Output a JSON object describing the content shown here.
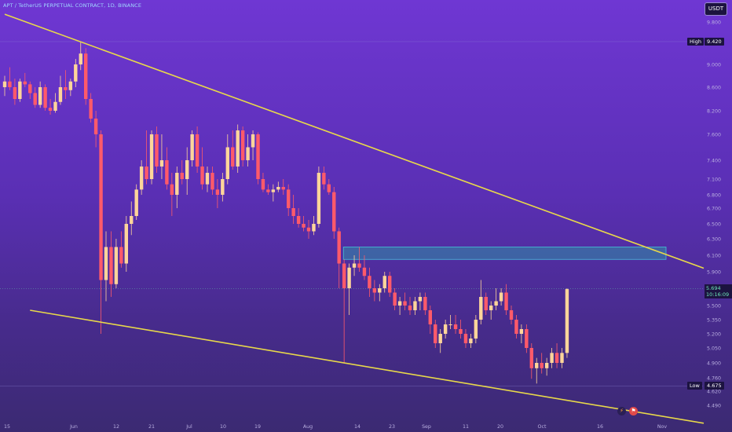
{
  "header": {
    "title": "APT / TetherUS PERPETUAL CONTRACT, 1D, BINANCE",
    "currency": "USDT"
  },
  "markers": {
    "high_label": "High",
    "high_value": "9.420",
    "low_label": "Low",
    "low_value": "4.675",
    "last_price": "5.694",
    "countdown": "10:16:09"
  },
  "colors": {
    "up": "#ffd59a",
    "down": "#ff5a6a",
    "trendline": "#e8d84a",
    "zone_fill": "#2f8fa8",
    "zone_border": "#46c2d8",
    "axis_text": "#b9aee0"
  },
  "icons": {
    "flash": "lightning-icon",
    "events": "flag-events-icon"
  },
  "chart_data": {
    "type": "candlestick",
    "yaxis": {
      "ticks": [
        "9.800",
        "9.420",
        "9.000",
        "8.600",
        "8.200",
        "7.600",
        "7.400",
        "7.100",
        "6.800",
        "6.700",
        "6.500",
        "6.300",
        "6.100",
        "5.900",
        "5.700",
        "5.500",
        "5.350",
        "5.200",
        "5.050",
        "4.900",
        "4.760",
        "4.620",
        "4.490"
      ]
    },
    "xaxis": {
      "ticks": [
        "15",
        "Jun",
        "12",
        "21",
        "Jul",
        "10",
        "19",
        "Aug",
        "14",
        "23",
        "Sep",
        "11",
        "20",
        "Oct",
        "16",
        "Nov"
      ]
    },
    "ohlc": [
      [
        8.6,
        8.8,
        8.45,
        8.7
      ],
      [
        8.7,
        8.95,
        8.55,
        8.6
      ],
      [
        8.6,
        8.75,
        8.3,
        8.4
      ],
      [
        8.4,
        8.75,
        8.35,
        8.7
      ],
      [
        8.7,
        8.85,
        8.6,
        8.65
      ],
      [
        8.65,
        8.7,
        8.4,
        8.5
      ],
      [
        8.5,
        8.6,
        8.25,
        8.3
      ],
      [
        8.3,
        8.7,
        8.25,
        8.6
      ],
      [
        8.6,
        8.65,
        8.2,
        8.25
      ],
      [
        8.25,
        8.4,
        8.1,
        8.2
      ],
      [
        8.2,
        8.5,
        8.15,
        8.35
      ],
      [
        8.35,
        8.8,
        8.3,
        8.6
      ],
      [
        8.6,
        8.9,
        8.4,
        8.55
      ],
      [
        8.55,
        8.75,
        8.45,
        8.7
      ],
      [
        8.7,
        9.1,
        8.6,
        9.0
      ],
      [
        9.0,
        9.42,
        8.9,
        9.2
      ],
      [
        9.2,
        9.3,
        8.3,
        8.4
      ],
      [
        8.4,
        8.5,
        7.9,
        8.0
      ],
      [
        8.0,
        8.2,
        7.5,
        7.6
      ],
      [
        7.6,
        7.7,
        5.2,
        5.8
      ],
      [
        5.8,
        6.4,
        5.55,
        6.2
      ],
      [
        6.2,
        6.4,
        5.6,
        5.75
      ],
      [
        5.75,
        6.3,
        5.7,
        6.2
      ],
      [
        6.2,
        6.4,
        5.95,
        6.0
      ],
      [
        6.0,
        6.6,
        5.9,
        6.5
      ],
      [
        6.5,
        6.75,
        6.35,
        6.6
      ],
      [
        6.6,
        7.0,
        6.55,
        6.9
      ],
      [
        6.9,
        7.4,
        6.8,
        7.3
      ],
      [
        7.3,
        7.7,
        7.0,
        7.1
      ],
      [
        7.1,
        7.7,
        7.0,
        7.6
      ],
      [
        7.6,
        7.8,
        7.2,
        7.3
      ],
      [
        7.3,
        7.6,
        7.1,
        7.4
      ],
      [
        7.4,
        7.5,
        6.9,
        7.0
      ],
      [
        7.0,
        7.2,
        6.6,
        6.8
      ],
      [
        6.8,
        7.3,
        6.7,
        7.2
      ],
      [
        7.2,
        7.4,
        7.0,
        7.1
      ],
      [
        7.1,
        7.5,
        6.8,
        7.4
      ],
      [
        7.4,
        7.7,
        7.3,
        7.6
      ],
      [
        7.6,
        7.8,
        7.2,
        7.3
      ],
      [
        7.3,
        7.5,
        6.9,
        7.0
      ],
      [
        7.0,
        7.3,
        6.85,
        7.2
      ],
      [
        7.2,
        7.3,
        6.8,
        6.9
      ],
      [
        6.9,
        7.1,
        6.7,
        6.8
      ],
      [
        6.8,
        7.2,
        6.75,
        7.1
      ],
      [
        7.1,
        7.6,
        7.0,
        7.5
      ],
      [
        7.5,
        7.7,
        7.25,
        7.3
      ],
      [
        7.3,
        7.85,
        7.2,
        7.7
      ],
      [
        7.7,
        7.8,
        7.3,
        7.4
      ],
      [
        7.4,
        7.6,
        7.3,
        7.5
      ],
      [
        7.5,
        7.7,
        7.4,
        7.6
      ],
      [
        7.6,
        7.65,
        7.0,
        7.1
      ],
      [
        7.1,
        7.2,
        6.85,
        6.9
      ],
      [
        6.9,
        7.0,
        6.8,
        6.85
      ],
      [
        6.85,
        7.0,
        6.75,
        6.9
      ],
      [
        6.9,
        7.05,
        6.85,
        6.95
      ],
      [
        6.95,
        7.1,
        6.8,
        6.9
      ],
      [
        6.9,
        7.0,
        6.6,
        6.7
      ],
      [
        6.7,
        6.8,
        6.5,
        6.6
      ],
      [
        6.6,
        6.7,
        6.45,
        6.5
      ],
      [
        6.5,
        6.6,
        6.4,
        6.45
      ],
      [
        6.45,
        6.55,
        6.3,
        6.4
      ],
      [
        6.4,
        6.6,
        6.35,
        6.5
      ],
      [
        6.5,
        7.3,
        6.45,
        7.2
      ],
      [
        7.2,
        7.3,
        6.9,
        7.0
      ],
      [
        7.0,
        7.1,
        6.8,
        6.85
      ],
      [
        6.85,
        6.95,
        6.3,
        6.4
      ],
      [
        6.4,
        6.45,
        5.7,
        6.0
      ],
      [
        6.0,
        6.05,
        4.9,
        5.7
      ],
      [
        5.7,
        6.0,
        5.4,
        5.95
      ],
      [
        5.95,
        6.1,
        5.85,
        6.0
      ],
      [
        6.0,
        6.2,
        5.9,
        5.95
      ],
      [
        5.95,
        6.1,
        5.8,
        5.85
      ],
      [
        5.85,
        5.95,
        5.6,
        5.7
      ],
      [
        5.7,
        5.8,
        5.55,
        5.65
      ],
      [
        5.65,
        5.75,
        5.55,
        5.7
      ],
      [
        5.7,
        5.9,
        5.65,
        5.85
      ],
      [
        5.85,
        5.9,
        5.6,
        5.65
      ],
      [
        5.65,
        5.7,
        5.45,
        5.5
      ],
      [
        5.5,
        5.6,
        5.4,
        5.55
      ],
      [
        5.55,
        5.65,
        5.45,
        5.5
      ],
      [
        5.5,
        5.6,
        5.4,
        5.45
      ],
      [
        5.45,
        5.6,
        5.4,
        5.55
      ],
      [
        5.55,
        5.65,
        5.45,
        5.6
      ],
      [
        5.6,
        5.65,
        5.4,
        5.45
      ],
      [
        5.45,
        5.5,
        5.2,
        5.3
      ],
      [
        5.3,
        5.35,
        5.05,
        5.1
      ],
      [
        5.1,
        5.25,
        5.0,
        5.2
      ],
      [
        5.2,
        5.35,
        5.15,
        5.3
      ],
      [
        5.3,
        5.4,
        5.25,
        5.3
      ],
      [
        5.3,
        5.4,
        5.2,
        5.25
      ],
      [
        5.25,
        5.35,
        5.15,
        5.2
      ],
      [
        5.2,
        5.25,
        5.05,
        5.1
      ],
      [
        5.1,
        5.2,
        5.05,
        5.15
      ],
      [
        5.15,
        5.4,
        5.1,
        5.35
      ],
      [
        5.35,
        5.8,
        5.3,
        5.6
      ],
      [
        5.6,
        5.65,
        5.4,
        5.45
      ],
      [
        5.45,
        5.55,
        5.35,
        5.5
      ],
      [
        5.5,
        5.7,
        5.45,
        5.55
      ],
      [
        5.55,
        5.7,
        5.5,
        5.65
      ],
      [
        5.65,
        5.75,
        5.4,
        5.45
      ],
      [
        5.45,
        5.5,
        5.3,
        5.35
      ],
      [
        5.35,
        5.4,
        5.15,
        5.2
      ],
      [
        5.2,
        5.3,
        5.1,
        5.25
      ],
      [
        5.25,
        5.3,
        5.0,
        5.05
      ],
      [
        5.05,
        5.1,
        4.75,
        4.85
      ],
      [
        4.85,
        4.95,
        4.7,
        4.9
      ],
      [
        4.9,
        5.0,
        4.8,
        4.85
      ],
      [
        4.85,
        4.95,
        4.78,
        4.9
      ],
      [
        4.9,
        5.05,
        4.85,
        5.0
      ],
      [
        5.0,
        5.1,
        4.85,
        4.9
      ],
      [
        4.9,
        5.05,
        4.85,
        5.0
      ],
      [
        5.0,
        5.7,
        4.95,
        5.69
      ]
    ],
    "trendlines": [
      {
        "name": "upper",
        "from": [
          0,
          9.95
        ],
        "to": [
          122,
          6.3
        ]
      },
      {
        "name": "lower",
        "from": [
          5,
          5.45
        ],
        "to": [
          122,
          4.45
        ]
      }
    ],
    "zone": {
      "from_x": 65,
      "to_x": 120,
      "low": 6.05,
      "high": 6.2
    },
    "levels": {
      "high": 9.42,
      "low": 4.675,
      "last": 5.694
    }
  }
}
